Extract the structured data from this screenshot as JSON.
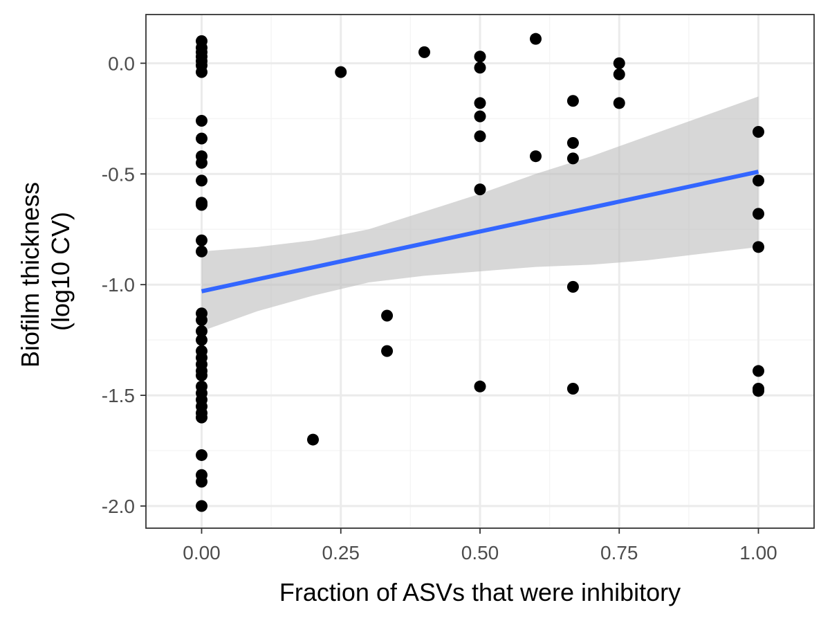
{
  "chart_data": {
    "type": "scatter",
    "title": "",
    "xlabel": "Fraction of ASVs that were inhibitory",
    "ylabel_lines": [
      "Biofilm thickness",
      "(log10 CV)"
    ],
    "xlim": [
      -0.1,
      1.1
    ],
    "ylim": [
      -2.1,
      0.22
    ],
    "x_ticks": [
      0.0,
      0.25,
      0.5,
      0.75,
      1.0
    ],
    "x_tick_labels": [
      "0.00",
      "0.25",
      "0.50",
      "0.75",
      "1.00"
    ],
    "y_ticks": [
      -2.0,
      -1.5,
      -1.0,
      -0.5,
      0.0
    ],
    "y_tick_labels": [
      "-2.0",
      "-1.5",
      "-1.0",
      "-0.5",
      "0.0"
    ],
    "grid": true,
    "legend": "none",
    "colors": {
      "points": "#000000",
      "fit_line": "#3366ff",
      "ci_band": "#bdbdbd",
      "grid_major": "#ebebeb",
      "grid_minor": "#f5f5f5",
      "panel_border": "#333333"
    },
    "points": [
      {
        "x": 0.0,
        "y": 0.1
      },
      {
        "x": 0.0,
        "y": 0.07
      },
      {
        "x": 0.0,
        "y": 0.05
      },
      {
        "x": 0.0,
        "y": 0.03
      },
      {
        "x": 0.0,
        "y": 0.01
      },
      {
        "x": 0.0,
        "y": -0.01
      },
      {
        "x": 0.0,
        "y": -0.04
      },
      {
        "x": 0.0,
        "y": -0.26
      },
      {
        "x": 0.0,
        "y": -0.34
      },
      {
        "x": 0.0,
        "y": -0.42
      },
      {
        "x": 0.0,
        "y": -0.45
      },
      {
        "x": 0.0,
        "y": -0.53
      },
      {
        "x": 0.0,
        "y": -0.63
      },
      {
        "x": 0.0,
        "y": -0.64
      },
      {
        "x": 0.0,
        "y": -0.8
      },
      {
        "x": 0.0,
        "y": -0.85
      },
      {
        "x": 0.0,
        "y": -1.13
      },
      {
        "x": 0.0,
        "y": -1.16
      },
      {
        "x": 0.0,
        "y": -1.21
      },
      {
        "x": 0.0,
        "y": -1.25
      },
      {
        "x": 0.0,
        "y": -1.3
      },
      {
        "x": 0.0,
        "y": -1.33
      },
      {
        "x": 0.0,
        "y": -1.36
      },
      {
        "x": 0.0,
        "y": -1.39
      },
      {
        "x": 0.0,
        "y": -1.41
      },
      {
        "x": 0.0,
        "y": -1.46
      },
      {
        "x": 0.0,
        "y": -1.49
      },
      {
        "x": 0.0,
        "y": -1.52
      },
      {
        "x": 0.0,
        "y": -1.55
      },
      {
        "x": 0.0,
        "y": -1.58
      },
      {
        "x": 0.0,
        "y": -1.6
      },
      {
        "x": 0.0,
        "y": -1.77
      },
      {
        "x": 0.0,
        "y": -1.86
      },
      {
        "x": 0.0,
        "y": -1.89
      },
      {
        "x": 0.0,
        "y": -2.0
      },
      {
        "x": 0.2,
        "y": -1.7
      },
      {
        "x": 0.25,
        "y": -0.04
      },
      {
        "x": 0.333,
        "y": -1.14
      },
      {
        "x": 0.333,
        "y": -1.3
      },
      {
        "x": 0.4,
        "y": 0.05
      },
      {
        "x": 0.5,
        "y": 0.03
      },
      {
        "x": 0.5,
        "y": -0.02
      },
      {
        "x": 0.5,
        "y": -0.18
      },
      {
        "x": 0.5,
        "y": -0.24
      },
      {
        "x": 0.5,
        "y": -0.33
      },
      {
        "x": 0.5,
        "y": -0.57
      },
      {
        "x": 0.5,
        "y": -1.46
      },
      {
        "x": 0.6,
        "y": 0.11
      },
      {
        "x": 0.6,
        "y": -0.42
      },
      {
        "x": 0.667,
        "y": -0.17
      },
      {
        "x": 0.667,
        "y": -0.36
      },
      {
        "x": 0.667,
        "y": -0.43
      },
      {
        "x": 0.667,
        "y": -1.01
      },
      {
        "x": 0.667,
        "y": -1.47
      },
      {
        "x": 0.75,
        "y": 0.0
      },
      {
        "x": 0.75,
        "y": -0.05
      },
      {
        "x": 0.75,
        "y": -0.18
      },
      {
        "x": 1.0,
        "y": -0.31
      },
      {
        "x": 1.0,
        "y": -0.53
      },
      {
        "x": 1.0,
        "y": -0.68
      },
      {
        "x": 1.0,
        "y": -0.83
      },
      {
        "x": 1.0,
        "y": -1.39
      },
      {
        "x": 1.0,
        "y": -1.47
      },
      {
        "x": 1.0,
        "y": -1.48
      }
    ],
    "fit_line": {
      "type": "linear",
      "x": [
        0.0,
        1.0
      ],
      "y": [
        -1.03,
        -0.49
      ]
    },
    "confidence_band": [
      {
        "x": 0.0,
        "lower": -1.21,
        "upper": -0.85
      },
      {
        "x": 0.1,
        "lower": -1.12,
        "upper": -0.83
      },
      {
        "x": 0.2,
        "lower": -1.05,
        "upper": -0.8
      },
      {
        "x": 0.3,
        "lower": -0.99,
        "upper": -0.75
      },
      {
        "x": 0.4,
        "lower": -0.96,
        "upper": -0.67
      },
      {
        "x": 0.5,
        "lower": -0.94,
        "upper": -0.59
      },
      {
        "x": 0.6,
        "lower": -0.92,
        "upper": -0.5
      },
      {
        "x": 0.7,
        "lower": -0.91,
        "upper": -0.42
      },
      {
        "x": 0.8,
        "lower": -0.89,
        "upper": -0.33
      },
      {
        "x": 0.9,
        "lower": -0.86,
        "upper": -0.24
      },
      {
        "x": 1.0,
        "lower": -0.83,
        "upper": -0.15
      }
    ]
  }
}
